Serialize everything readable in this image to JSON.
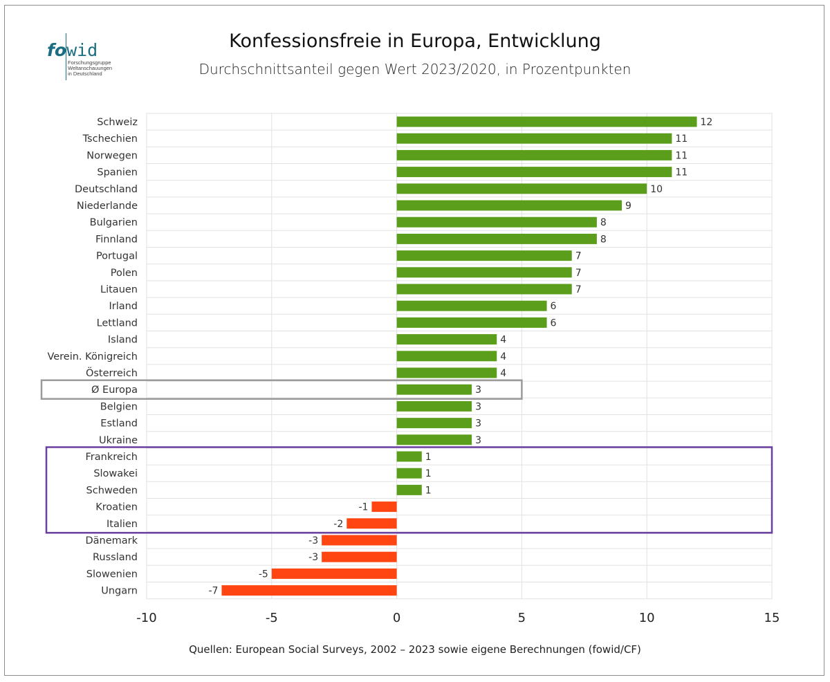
{
  "logo": {
    "fo": "fo",
    "wid": "wid",
    "tagline": "Forschungsgruppe\nWeltanschauungen\nin Deutschland"
  },
  "header": {
    "title": "Konfessionsfreie in Europa, Entwicklung",
    "subtitle": "Durchschnittsanteil gegen Wert 2023/2020, in Prozentpunkten"
  },
  "footer": {
    "source": "Quellen: European Social Surveys, 2002 – 2023 sowie eigene Berechnungen (fowid/CF)"
  },
  "chart_data": {
    "type": "bar",
    "orientation": "horizontal",
    "title": "Konfessionsfreie in Europa, Entwicklung",
    "subtitle": "Durchschnittsanteil gegen Wert 2023/2020, in Prozentpunkten",
    "categories": [
      "Schweiz",
      "Tschechien",
      "Norwegen",
      "Spanien",
      "Deutschland",
      "Niederlande",
      "Bulgarien",
      "Finnland",
      "Portugal",
      "Polen",
      "Litauen",
      "Irland",
      "Lettland",
      "Island",
      "Verein. Königreich",
      "Österreich",
      "Ø Europa",
      "Belgien",
      "Estland",
      "Ukraine",
      "Frankreich",
      "Slowakei",
      "Schweden",
      "Kroatien",
      "Italien",
      "Dänemark",
      "Russland",
      "Slowenien",
      "Ungarn"
    ],
    "values": [
      12,
      11,
      11,
      11,
      10,
      9,
      8,
      8,
      7,
      7,
      7,
      6,
      6,
      4,
      4,
      4,
      3,
      3,
      3,
      3,
      1,
      1,
      1,
      -1,
      -2,
      -3,
      -3,
      -5,
      -7
    ],
    "value_labels": [
      "12",
      "11",
      "11",
      "11",
      "10",
      "9",
      "8",
      "8",
      "7",
      "7",
      "7",
      "6",
      "6",
      "4",
      "4",
      "4",
      "3",
      "3",
      "3",
      "3",
      "1",
      "1",
      "1",
      "-1",
      "-2",
      "-3",
      "-3",
      "-5",
      "-7"
    ],
    "xlim": [
      -10,
      15
    ],
    "xticks": [
      -10,
      -5,
      0,
      5,
      10,
      15
    ],
    "xtick_labels": [
      "-10",
      "-5",
      "0",
      "5",
      "10",
      "15"
    ],
    "grid": true,
    "colors": {
      "positive": "#5a9e1c",
      "negative": "#ff4511",
      "highlight_average": "#9a9a9a",
      "highlight_group": "#6b3fa0",
      "grid": "#e2e2e2"
    },
    "highlight_boxes": [
      {
        "name": "average",
        "categories": [
          "Ø Europa"
        ]
      },
      {
        "name": "group",
        "categories": [
          "Frankreich",
          "Slowakei",
          "Schweden",
          "Kroatien",
          "Italien"
        ]
      }
    ]
  }
}
